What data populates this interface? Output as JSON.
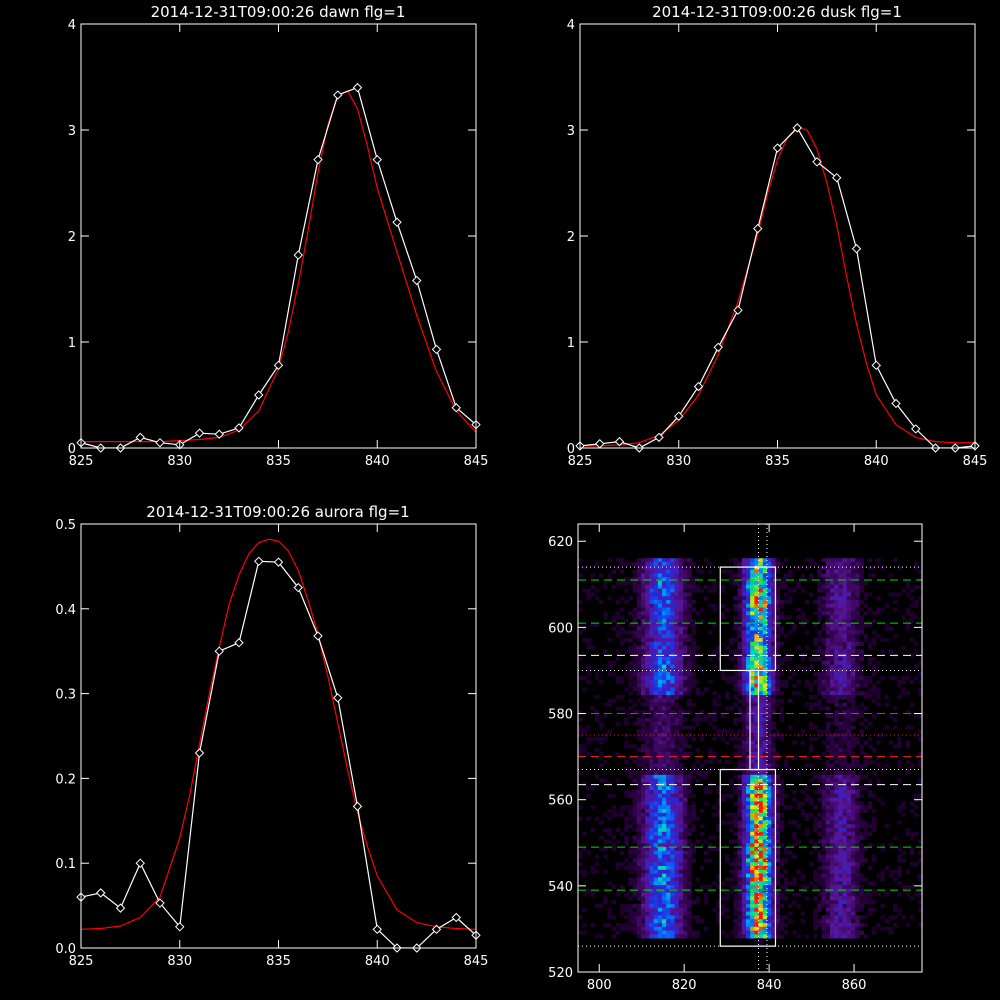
{
  "chart_data": [
    {
      "type": "line",
      "title": "2014-12-31T09:00:26 dawn flg=1",
      "xlim": [
        825,
        845
      ],
      "ylim": [
        0,
        4
      ],
      "xticks": [
        825,
        830,
        835,
        840,
        845
      ],
      "yticks": [
        0,
        1,
        2,
        3,
        4
      ],
      "series": [
        {
          "color": "#ffffff",
          "marker": "diamond",
          "x": [
            825,
            826,
            827,
            828,
            829,
            830,
            831,
            832,
            833,
            834,
            835,
            836,
            837,
            838,
            839,
            840,
            841,
            842,
            843,
            844,
            845
          ],
          "y": [
            0.05,
            0.0,
            0.0,
            0.1,
            0.05,
            0.03,
            0.14,
            0.13,
            0.19,
            0.5,
            0.78,
            1.82,
            2.72,
            3.33,
            3.4,
            2.72,
            2.13,
            1.58,
            0.93,
            0.38,
            0.22
          ]
        },
        {
          "color": "#ff0000",
          "marker": "none",
          "x": [
            825,
            826,
            827,
            828,
            829,
            830,
            831,
            832,
            833,
            834,
            835,
            835.5,
            836,
            836.5,
            837,
            837.5,
            838,
            838.5,
            839,
            839.5,
            840,
            840.5,
            841,
            842,
            843,
            844,
            845
          ],
          "y": [
            0.06,
            0.06,
            0.06,
            0.06,
            0.06,
            0.07,
            0.08,
            0.1,
            0.17,
            0.35,
            0.75,
            1.1,
            1.55,
            2.05,
            2.6,
            3.05,
            3.32,
            3.37,
            3.2,
            2.85,
            2.45,
            2.15,
            1.85,
            1.25,
            0.72,
            0.35,
            0.15
          ]
        }
      ]
    },
    {
      "type": "line",
      "title": "2014-12-31T09:00:26 dusk flg=1",
      "xlim": [
        825,
        845
      ],
      "ylim": [
        0,
        4
      ],
      "xticks": [
        825,
        830,
        835,
        840,
        845
      ],
      "yticks": [
        0,
        1,
        2,
        3,
        4
      ],
      "series": [
        {
          "color": "#ffffff",
          "marker": "diamond",
          "x": [
            825,
            826,
            827,
            828,
            829,
            830,
            831,
            832,
            833,
            834,
            835,
            836,
            837,
            838,
            839,
            840,
            841,
            842,
            843,
            844,
            845
          ],
          "y": [
            0.02,
            0.04,
            0.06,
            0.0,
            0.1,
            0.3,
            0.58,
            0.95,
            1.3,
            2.07,
            2.83,
            3.02,
            2.7,
            2.55,
            1.88,
            0.78,
            0.42,
            0.18,
            0.0,
            0.0,
            0.02
          ]
        },
        {
          "color": "#ff0000",
          "marker": "none",
          "x": [
            825,
            826,
            827,
            828,
            829,
            830,
            831,
            832,
            833,
            834,
            834.5,
            835,
            835.5,
            836,
            836.5,
            837,
            837.5,
            838,
            838.5,
            839,
            839.5,
            840,
            841,
            842,
            843,
            844,
            845
          ],
          "y": [
            0.02,
            0.02,
            0.03,
            0.05,
            0.12,
            0.26,
            0.5,
            0.88,
            1.38,
            2.02,
            2.4,
            2.72,
            2.93,
            3.03,
            3.0,
            2.82,
            2.5,
            2.1,
            1.62,
            1.17,
            0.8,
            0.5,
            0.22,
            0.1,
            0.06,
            0.05,
            0.05
          ]
        }
      ]
    },
    {
      "type": "line",
      "title": "2014-12-31T09:00:26 aurora flg=1",
      "xlim": [
        825,
        845
      ],
      "ylim": [
        0,
        0.5
      ],
      "xticks": [
        825,
        830,
        835,
        840,
        845
      ],
      "yticks": [
        0.0,
        0.1,
        0.2,
        0.3,
        0.4,
        0.5
      ],
      "ytick_labels": [
        "0.0",
        "0.1",
        "0.2",
        "0.3",
        "0.4",
        "0.5"
      ],
      "series": [
        {
          "color": "#ffffff",
          "marker": "diamond",
          "x": [
            825,
            826,
            827,
            828,
            829,
            830,
            831,
            832,
            833,
            834,
            835,
            836,
            837,
            838,
            839,
            840,
            841,
            842,
            843,
            844,
            845
          ],
          "y": [
            0.06,
            0.065,
            0.047,
            0.1,
            0.053,
            0.025,
            0.23,
            0.35,
            0.36,
            0.456,
            0.455,
            0.425,
            0.368,
            0.295,
            0.167,
            0.022,
            0.0,
            0.0,
            0.022,
            0.036,
            0.015
          ]
        },
        {
          "color": "#ff0000",
          "marker": "none",
          "x": [
            825,
            826,
            827,
            828,
            829,
            830,
            830.5,
            831,
            831.5,
            832,
            832.5,
            833,
            833.5,
            834,
            834.5,
            835,
            835.5,
            836,
            836.5,
            837,
            837.5,
            838,
            838.5,
            839,
            839.5,
            840,
            841,
            842,
            843,
            844,
            845
          ],
          "y": [
            0.022,
            0.023,
            0.026,
            0.036,
            0.06,
            0.13,
            0.18,
            0.24,
            0.3,
            0.355,
            0.405,
            0.44,
            0.465,
            0.478,
            0.482,
            0.48,
            0.468,
            0.445,
            0.41,
            0.37,
            0.32,
            0.265,
            0.21,
            0.16,
            0.12,
            0.085,
            0.045,
            0.03,
            0.025,
            0.023,
            0.022
          ]
        }
      ]
    },
    {
      "type": "heatmap",
      "title": "",
      "xlim": [
        795,
        876
      ],
      "ylim": [
        520,
        624
      ],
      "xticks": [
        800,
        820,
        840,
        860
      ],
      "yticks": [
        520,
        540,
        560,
        580,
        600,
        620
      ],
      "bands": [
        {
          "x": 815,
          "width": 4.5,
          "intensity": 0.55
        },
        {
          "x": 837.5,
          "width": 3.0,
          "intensity": 1.0
        },
        {
          "x": 857,
          "width": 4.0,
          "intensity": 0.28
        }
      ],
      "vlines": [
        {
          "x": 837.5,
          "color": "#ffffff",
          "style": "dotted"
        },
        {
          "x": 839.5,
          "color": "#ffffff",
          "style": "dotted"
        }
      ],
      "hlines": [
        {
          "y": 611,
          "color": "#00dd00",
          "style": "dashed"
        },
        {
          "y": 601,
          "color": "#00dd00",
          "style": "dashed"
        },
        {
          "y": 549,
          "color": "#00dd00",
          "style": "dashed"
        },
        {
          "y": 539,
          "color": "#00dd00",
          "style": "dashed"
        },
        {
          "y": 593.5,
          "color": "#ffffff",
          "style": "dashed"
        },
        {
          "y": 563.5,
          "color": "#ffffff",
          "style": "dashed"
        },
        {
          "y": 580,
          "color": "#ff2020",
          "style": "dashed"
        },
        {
          "y": 570,
          "color": "#ff2020",
          "style": "dashed"
        },
        {
          "y": 614,
          "color": "#ffffff",
          "style": "dotted"
        },
        {
          "y": 590,
          "color": "#ffffff",
          "style": "dotted"
        },
        {
          "y": 575,
          "color": "#cc2020",
          "style": "dotted"
        },
        {
          "y": 567,
          "color": "#ffffff",
          "style": "dotted"
        },
        {
          "y": 526,
          "color": "#ffffff",
          "style": "dotted"
        }
      ],
      "boxes": [
        {
          "x": [
            828.5,
            841.5
          ],
          "y": [
            590,
            614
          ],
          "color": "#ffffff"
        },
        {
          "x": [
            828.5,
            841.5
          ],
          "y": [
            526,
            567
          ],
          "color": "#ffffff"
        },
        {
          "x": [
            835.5,
            837.5
          ],
          "y": [
            567,
            590
          ],
          "color": "#ffffff"
        }
      ]
    }
  ]
}
